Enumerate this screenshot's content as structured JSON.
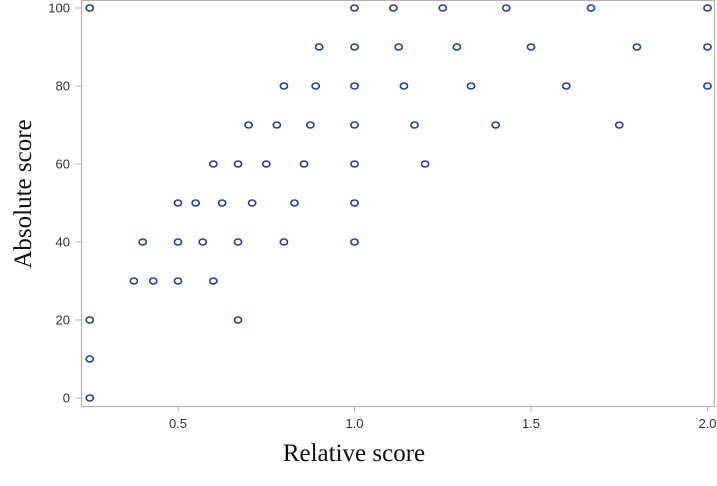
{
  "chart_data": {
    "type": "scatter",
    "title": "",
    "xlabel": "Relative score",
    "ylabel": "Absolute score",
    "xlim": [
      0.23,
      2.02
    ],
    "ylim": [
      -2,
      102
    ],
    "xticks": [
      0.5,
      1.0,
      1.5,
      2.0
    ],
    "xtick_labels": [
      "0.5",
      "1.0",
      "1.5",
      "2.0"
    ],
    "yticks": [
      0,
      20,
      40,
      60,
      80,
      100
    ],
    "ytick_labels": [
      "0",
      "20",
      "40",
      "60",
      "80",
      "100"
    ],
    "grid": false,
    "legend": null,
    "marker": "hollow-circle",
    "marker_color": "#1f3f99",
    "frame_color": "#b4b4b4",
    "points": [
      {
        "x": 0.25,
        "y": 100
      },
      {
        "x": 1.0,
        "y": 100
      },
      {
        "x": 1.11,
        "y": 100
      },
      {
        "x": 1.25,
        "y": 100
      },
      {
        "x": 1.43,
        "y": 100
      },
      {
        "x": 1.67,
        "y": 100
      },
      {
        "x": 2.0,
        "y": 100
      },
      {
        "x": 0.9,
        "y": 90
      },
      {
        "x": 1.0,
        "y": 90
      },
      {
        "x": 1.125,
        "y": 90
      },
      {
        "x": 1.29,
        "y": 90
      },
      {
        "x": 1.5,
        "y": 90
      },
      {
        "x": 1.8,
        "y": 90
      },
      {
        "x": 2.0,
        "y": 90
      },
      {
        "x": 0.8,
        "y": 80
      },
      {
        "x": 0.89,
        "y": 80
      },
      {
        "x": 1.0,
        "y": 80
      },
      {
        "x": 1.14,
        "y": 80
      },
      {
        "x": 1.33,
        "y": 80
      },
      {
        "x": 1.6,
        "y": 80
      },
      {
        "x": 2.0,
        "y": 80
      },
      {
        "x": 0.7,
        "y": 70
      },
      {
        "x": 0.78,
        "y": 70
      },
      {
        "x": 0.875,
        "y": 70
      },
      {
        "x": 1.0,
        "y": 70
      },
      {
        "x": 1.17,
        "y": 70
      },
      {
        "x": 1.4,
        "y": 70
      },
      {
        "x": 1.75,
        "y": 70
      },
      {
        "x": 0.6,
        "y": 60
      },
      {
        "x": 0.67,
        "y": 60
      },
      {
        "x": 0.75,
        "y": 60
      },
      {
        "x": 0.857,
        "y": 60
      },
      {
        "x": 1.0,
        "y": 60
      },
      {
        "x": 1.2,
        "y": 60
      },
      {
        "x": 0.5,
        "y": 50
      },
      {
        "x": 0.55,
        "y": 50
      },
      {
        "x": 0.625,
        "y": 50
      },
      {
        "x": 0.71,
        "y": 50
      },
      {
        "x": 0.83,
        "y": 50
      },
      {
        "x": 1.0,
        "y": 50
      },
      {
        "x": 0.4,
        "y": 40
      },
      {
        "x": 0.5,
        "y": 40
      },
      {
        "x": 0.57,
        "y": 40
      },
      {
        "x": 0.67,
        "y": 40
      },
      {
        "x": 0.8,
        "y": 40
      },
      {
        "x": 1.0,
        "y": 40
      },
      {
        "x": 0.375,
        "y": 30
      },
      {
        "x": 0.43,
        "y": 30
      },
      {
        "x": 0.5,
        "y": 30
      },
      {
        "x": 0.6,
        "y": 30
      },
      {
        "x": 0.25,
        "y": 20
      },
      {
        "x": 0.67,
        "y": 20
      },
      {
        "x": 0.25,
        "y": 10
      },
      {
        "x": 0.25,
        "y": 0
      }
    ]
  }
}
